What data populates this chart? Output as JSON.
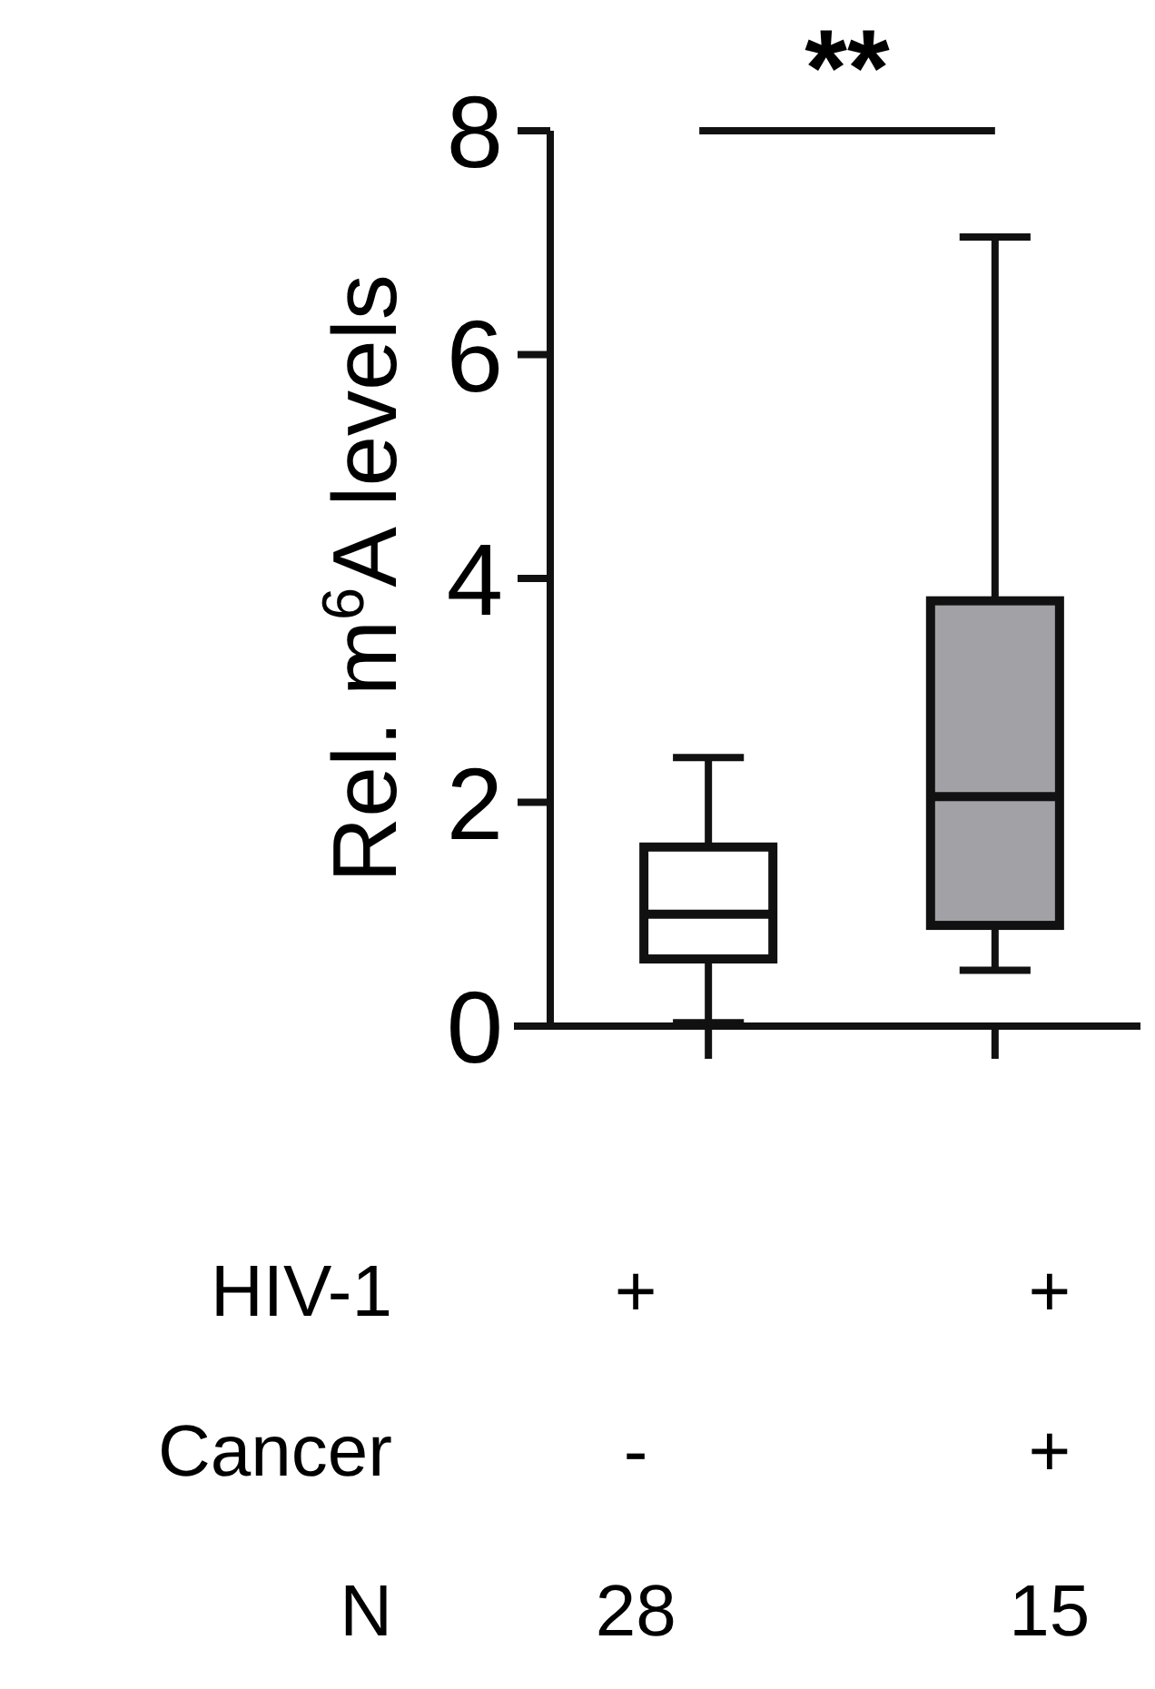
{
  "chart_data": {
    "type": "box",
    "ylabel": "Rel. m$^{6}$A levels",
    "categories": [
      null,
      null
    ],
    "boxes": [
      {
        "low": 0.03,
        "q1": 0.6,
        "median": 1.0,
        "q3": 1.6,
        "high": 2.4
      },
      {
        "low": 0.5,
        "q1": 0.9,
        "median": 2.05,
        "q3": 3.8,
        "high": 7.05
      }
    ],
    "colors": [
      "#ffffff",
      "#a2a2a6"
    ],
    "ylim": [
      0,
      8
    ],
    "yticks": [
      0,
      2,
      4,
      6,
      8
    ],
    "annotations": [
      "**",
      "HIV-1",
      "+",
      "+",
      "Cancer",
      "-",
      "+",
      "N",
      "28",
      "15"
    ]
  }
}
